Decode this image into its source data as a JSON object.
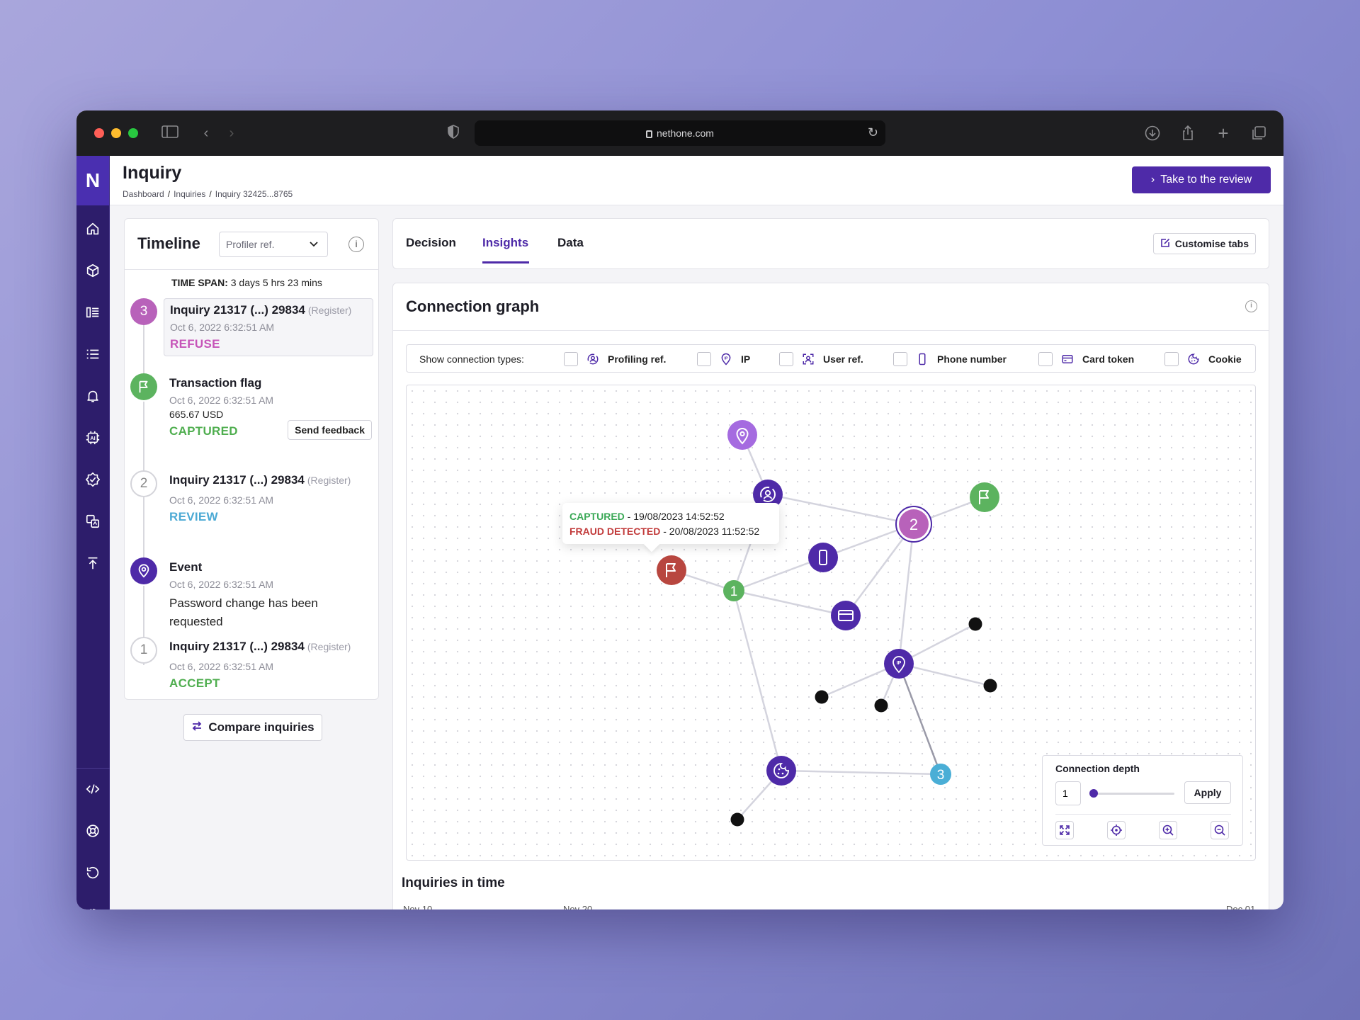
{
  "browser": {
    "url": "nethone.com"
  },
  "sidebar": {
    "logo": "N",
    "icons": [
      "home-icon",
      "cube-icon",
      "columns-icon",
      "list-icon",
      "bell-icon",
      "ai-chip-icon",
      "verified-badge-icon",
      "translate-icon",
      "upload-icon",
      "code-icon",
      "lifebuoy-icon",
      "history-icon",
      "settings-icon",
      "user-icon",
      "logout-icon"
    ]
  },
  "header": {
    "title": "Inquiry",
    "breadcrumb": [
      "Dashboard",
      "Inquiries",
      "Inquiry 32425...8765"
    ],
    "review_button": "Take to the review"
  },
  "timeline": {
    "title": "Timeline",
    "select_value": "Profiler ref.",
    "time_span_label": "TIME SPAN:",
    "time_span_value": "3 days 5 hrs 23 mins",
    "items": [
      {
        "badge": "3",
        "title": "Inquiry 21317 (...) 29834",
        "tag": "(Register)",
        "date": "Oct 6, 2022 6:32:51 AM",
        "status": "REFUSE"
      },
      {
        "badge": "flag",
        "title": "Transaction flag",
        "date": "Oct 6, 2022 6:32:51 AM",
        "amount": "665.67 USD",
        "status": "CAPTURED",
        "action": "Send feedback"
      },
      {
        "badge": "2",
        "title": "Inquiry 21317 (...) 29834",
        "tag": "(Register)",
        "date": "Oct 6, 2022 6:32:51 AM",
        "status": "REVIEW"
      },
      {
        "badge": "pin",
        "title": "Event",
        "date": "Oct 6, 2022 6:32:51 AM",
        "description": "Password change has been requested"
      },
      {
        "badge": "1",
        "title": "Inquiry 21317 (...) 29834",
        "tag": "(Register)",
        "date": "Oct 6, 2022 6:32:51 AM",
        "status": "ACCEPT"
      }
    ],
    "compare_button": "Compare inquiries"
  },
  "tabs": {
    "items": [
      "Decision",
      "Insights",
      "Data"
    ],
    "active": "Insights",
    "customise_button": "Customise tabs"
  },
  "graph": {
    "title": "Connection graph",
    "show_label": "Show connection types:",
    "connection_types": [
      "Profiling ref.",
      "IP",
      "User ref.",
      "Phone number",
      "Card token",
      "Cookie"
    ],
    "tooltip": {
      "captured_label": "CAPTURED",
      "captured_value": "- 19/08/2023 14:52:52",
      "fraud_label": "FRAUD DETECTED",
      "fraud_value": "- 20/08/2023 11:52:52"
    },
    "node_labels": {
      "inquiry_1": "1",
      "inquiry_2": "2",
      "inquiry_3": "3"
    },
    "depth": {
      "title": "Connection depth",
      "value": "1",
      "apply_label": "Apply"
    },
    "colors": {
      "purple": "#4e2aa8",
      "light_purple": "#a56be0",
      "green": "#5cb35f",
      "red": "#b8463f",
      "pink": "#b862ba",
      "blue": "#4aaed6"
    }
  },
  "inquiries_in_time": {
    "title": "Inquiries in time",
    "axis_labels": [
      "Nov 10",
      "Nov 20",
      "Dec 01"
    ]
  }
}
